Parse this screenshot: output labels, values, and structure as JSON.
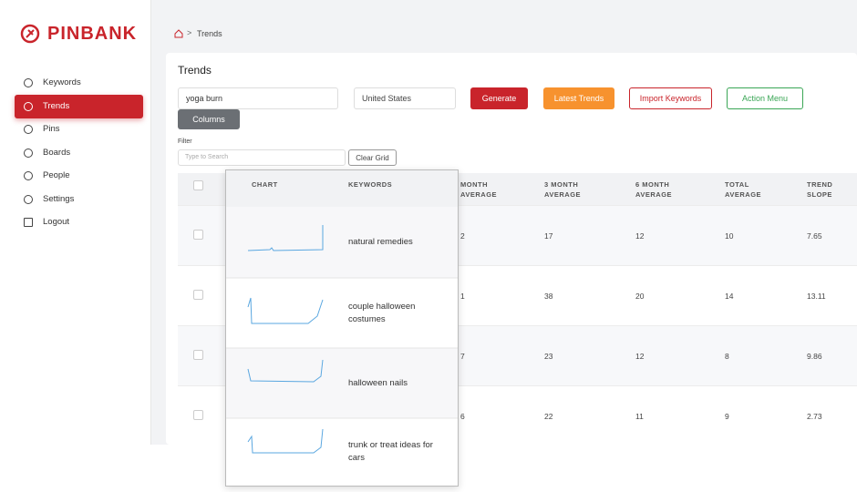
{
  "sidebar": {
    "logo": "PINBANK",
    "nav": [
      "Keywords",
      "Trends",
      "Pins",
      "Boards",
      "People",
      "Settings",
      "Logout"
    ],
    "active": 1
  },
  "breadcrumb": "Trends",
  "page": {
    "title": "Trends",
    "search_value": "yoga burn",
    "country": "United States",
    "buttons": [
      "Generate",
      "Latest Trends",
      "Import Keywords",
      "Action Menu"
    ],
    "columns_button": "Columns",
    "filter_label": "Filter",
    "filter_placeholder": "Type to Search",
    "clear_button": "Clear Grid"
  },
  "table": {
    "headers": [
      "MONTH AVERAGE",
      "3 MONTH AVERAGE",
      "6 MONTH AVERAGE",
      "TOTAL AVERAGE",
      "TREND SLOPE"
    ],
    "rows": [
      [
        "2",
        17,
        12,
        10,
        7.65
      ],
      [
        "1",
        38,
        20,
        14,
        13.11
      ],
      [
        "7",
        23,
        12,
        8,
        9.86
      ],
      [
        "6",
        22,
        11,
        9,
        2.73
      ]
    ]
  },
  "popup": {
    "headers": [
      "CHART",
      "KEYWORDS"
    ],
    "keywords": [
      "natural remedies",
      "couple halloween costumes",
      "halloween nails",
      "trunk or treat ideas for cars"
    ]
  }
}
